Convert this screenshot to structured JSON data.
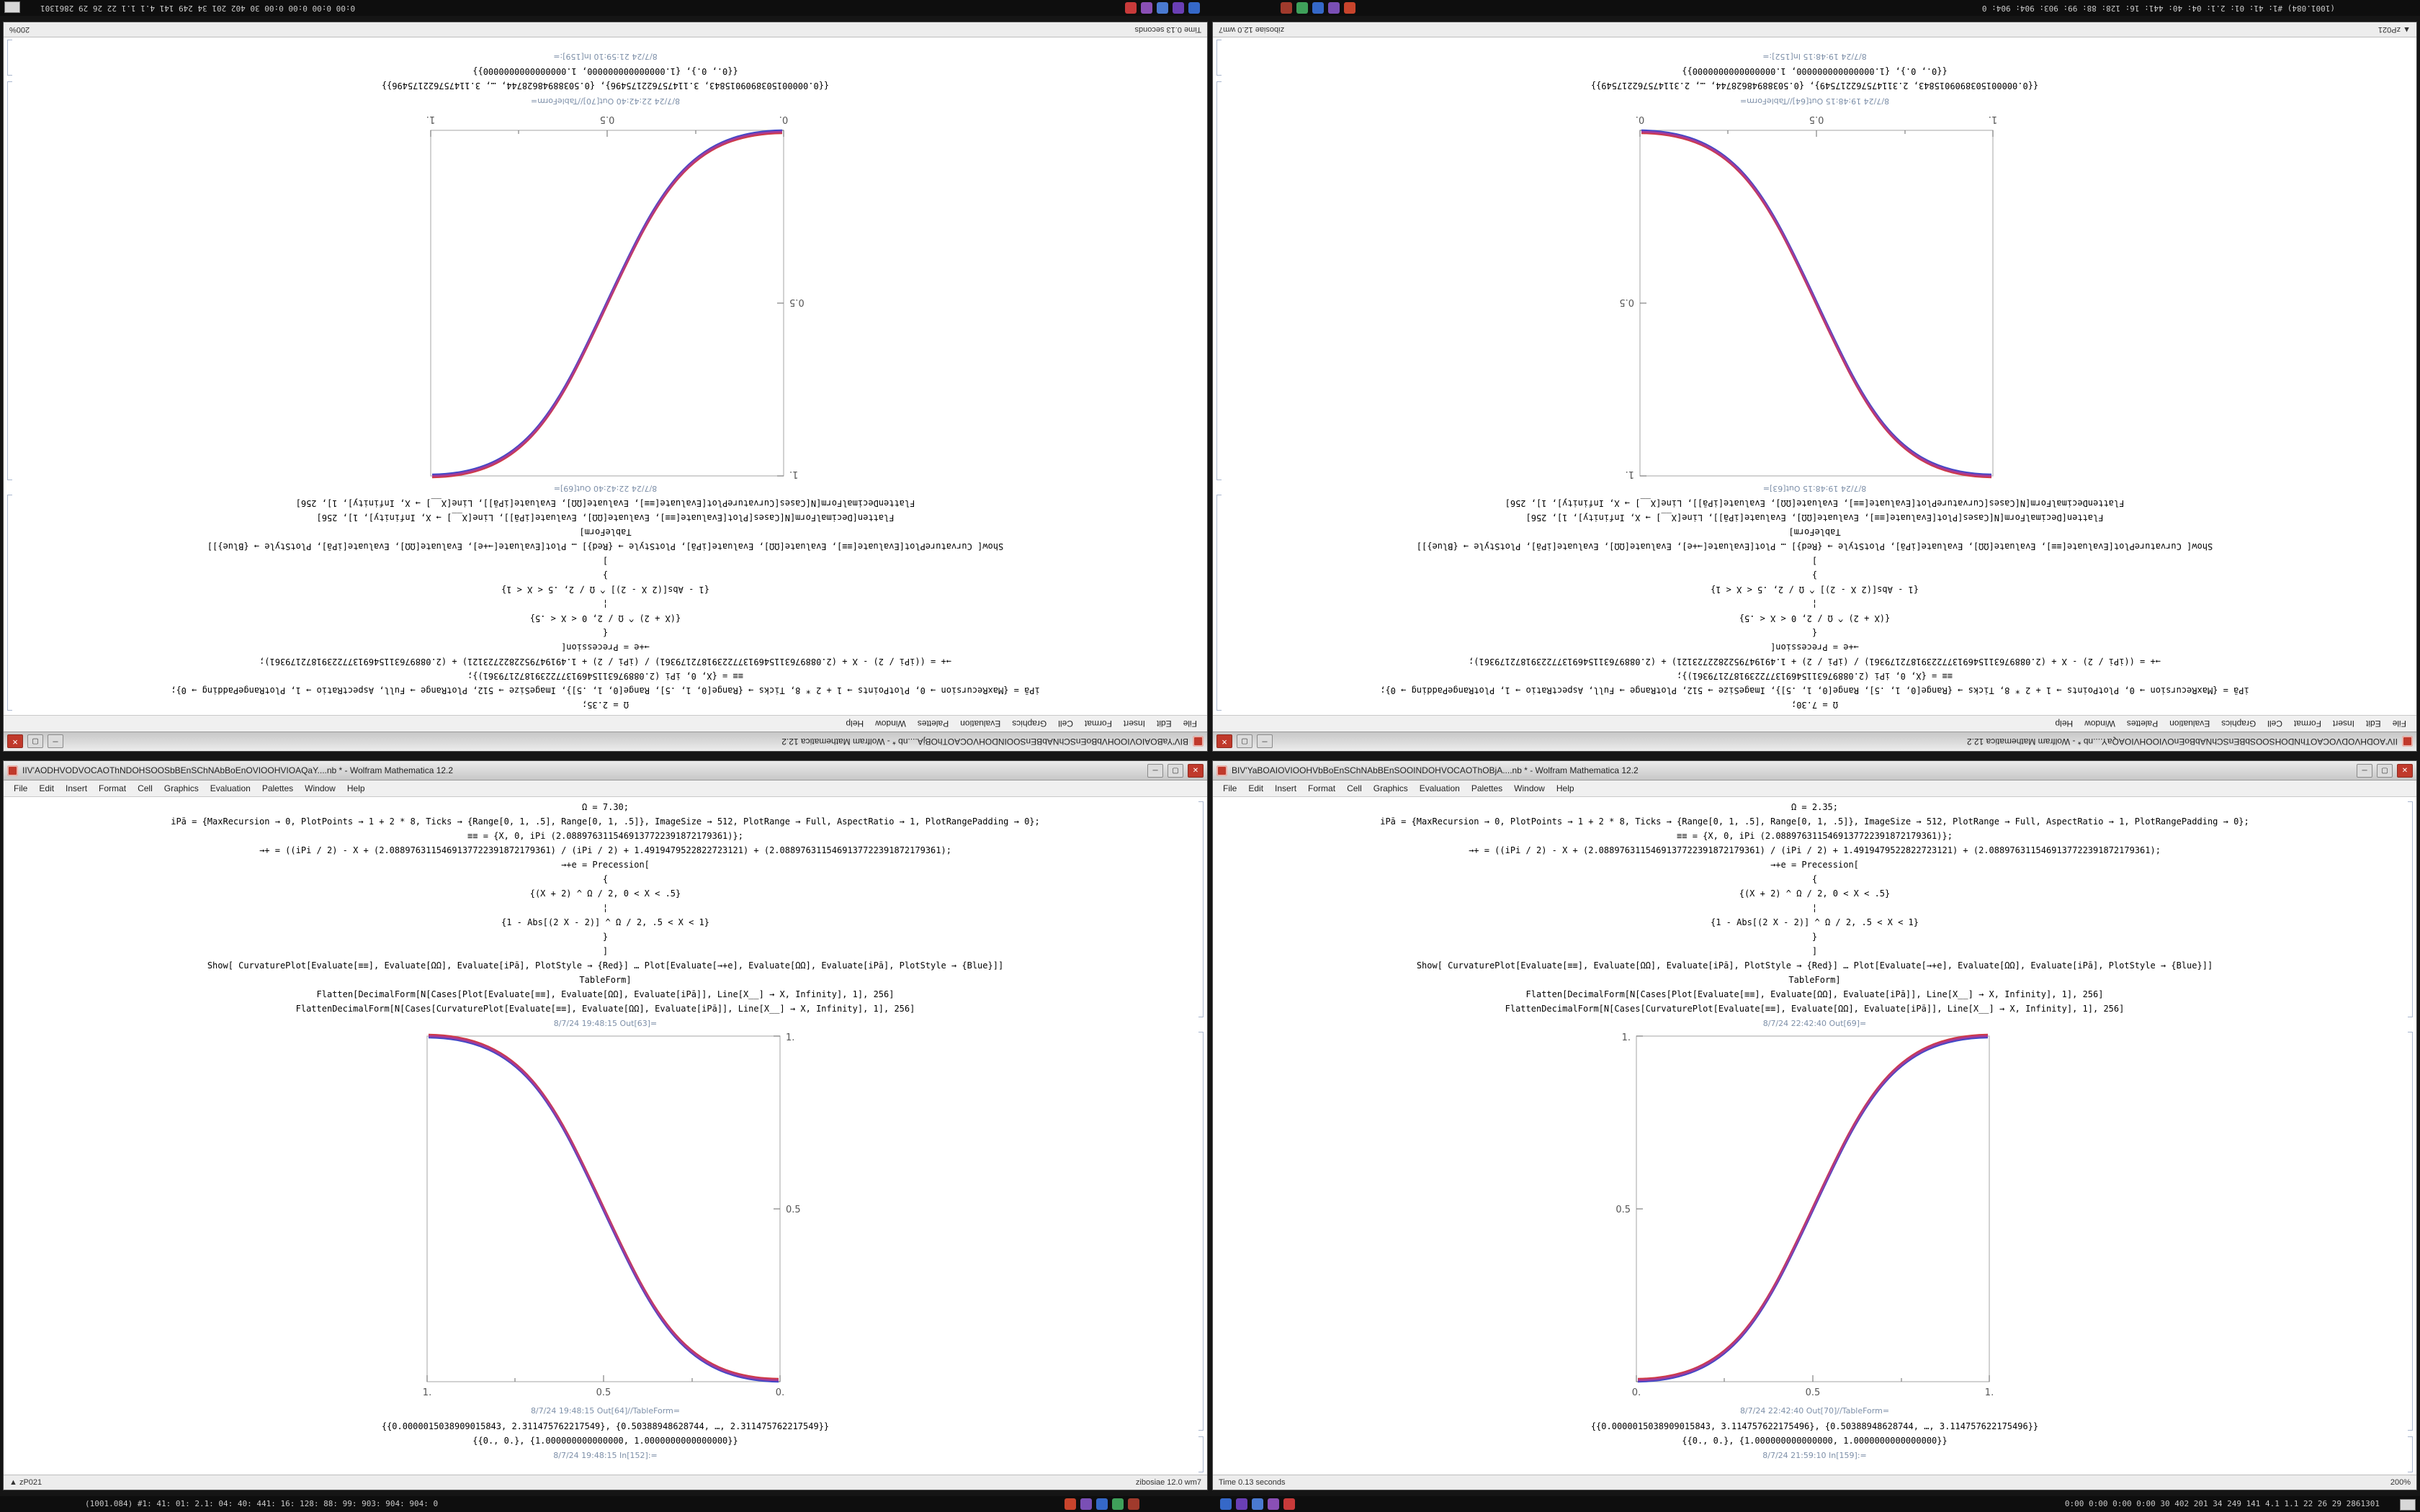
{
  "desktop": {
    "background": "#151515"
  },
  "window_buttons": {
    "minimize": "─",
    "maximize": "▢",
    "close": "✕"
  },
  "menu": {
    "items": [
      "File",
      "Edit",
      "Insert",
      "Format",
      "Cell",
      "Graphics",
      "Evaluation",
      "Palettes",
      "Window",
      "Help"
    ]
  },
  "taskbar": {
    "left_stats": "(1001.084)  #1: 41: 01: 2.1: 04: 40: 441: 16: 128: 88: 99: 903: 904: 904: 0",
    "right_stats": "0:00  0:00  0:00  0:00   30  402  201  34  249  141   4.1  1.1   22  26  29   2861301",
    "cluster1_colors": [
      "#c8442c",
      "#7a4fb5",
      "#3568c8",
      "#3fa05a",
      "#a03a2c"
    ],
    "cluster2_colors": [
      "#3568c8",
      "#6a3fb5",
      "#4a7ad0",
      "#8a4fb5",
      "#c83a3a"
    ]
  },
  "notebook_left": {
    "title": "IIV'AODHVODVOCAOThNDOHSOOSbBEnSChNAbBoEnOVIOOHVIOAQaY....nb * - Wolfram Mathematica 12.2",
    "inputs": [
      "Ω = 7.30;",
      "iPā = {MaxRecursion → 0, PlotPoints → 1 + 2 * 8, Ticks → {Range[0, 1, .5], Range[0, 1, .5]}, ImageSize → 512, PlotRange → Full, AspectRatio → 1, PlotRangePadding → 0};",
      "≡≡ = {X, 0, iPi (2.0889763115469137722391872179361)};",
      "→+ = ((iPi / 2) - X + (2.0889763115469137722391872179361) / (iPi / 2) + 1.4919479522822723121) + (2.0889763115469137722391872179361);",
      "→+e = Precession[",
      "{",
      "{(X + 2) ^ Ω / 2, 0 < X < .5}",
      "¦",
      "{1 - Abs[(2 X - 2)] ^ Ω / 2, .5 < X < 1}",
      "}",
      "]",
      "Show[ CurvaturePlot[Evaluate[≡≡], Evaluate[ΩΩ], Evaluate[iPā], PlotStyle → {Red}] … Plot[Evaluate[→+e], Evaluate[ΩΩ], Evaluate[iPā], PlotStyle → {Blue}]]",
      "TableForm]",
      "Flatten[DecimalForm[N[Cases[Plot[Evaluate[≡≡], Evaluate[ΩΩ], Evaluate[iPā]], Line[X__] → X, Infinity], 1], 256]",
      "FlattenDecimalForm[N[Cases[CurvaturePlot[Evaluate[≡≡], Evaluate[ΩΩ], Evaluate[iPā]], Line[X__] → X, Infinity], 1], 256]"
    ],
    "out_label_plot": "8/7/24 19:48:15 Out[63]=",
    "out_label_table": "8/7/24 19:48:15 Out[64]//TableForm=",
    "table_rows": [
      "{{0.0000015038909015843, 2.311475762217549}, {0.50388948628744, …, 2.311475762217549}}",
      "{{0., 0.}, {1.000000000000000, 1.0000000000000000}}"
    ],
    "next_in_label": "8/7/24 19:48:15 In[152]:=",
    "status_left": "▲ zP021",
    "status_right": "zibosiae 12.0 wm7",
    "plot": {
      "type": "line",
      "shape": "descending-sigmoid",
      "x_range": [
        0,
        1
      ],
      "y_range": [
        0,
        1
      ],
      "x_ticks": [
        "1.",
        "0.5",
        "0."
      ],
      "y_ticks": [
        "0.5",
        "1."
      ],
      "y_tick_side": "right",
      "series": [
        {
          "name": "CurvaturePlot",
          "color": "#d03a45"
        },
        {
          "name": "Plot",
          "color": "#4048c8"
        }
      ],
      "points": [
        [
          0,
          1
        ],
        [
          0.25,
          0.96
        ],
        [
          0.5,
          0.5
        ],
        [
          0.75,
          0.04
        ],
        [
          1,
          0
        ]
      ]
    }
  },
  "notebook_right": {
    "title": "BIV'YaBOAIOVIOOHVbBoEnSChNAbBEnSOOINDOHVOCAOThOBjA....nb * - Wolfram Mathematica 12.2",
    "inputs": [
      "Ω = 2.35;",
      "iPā = {MaxRecursion → 0, PlotPoints → 1 + 2 * 8, Ticks → {Range[0, 1, .5], Range[0, 1, .5]}, ImageSize → 512, PlotRange → Full, AspectRatio → 1, PlotRangePadding → 0};",
      "≡≡ = {X, 0, iPi (2.0889763115469137722391872179361)};",
      "→+ = ((iPi / 2) - X + (2.0889763115469137722391872179361) / (iPi / 2) + 1.4919479522822723121) + (2.0889763115469137722391872179361);",
      "→+e = Precession[",
      "{",
      "{(X + 2) ^ Ω / 2, 0 < X < .5}",
      "¦",
      "{1 - Abs[(2 X - 2)] ^ Ω / 2, .5 < X < 1}",
      "}",
      "]",
      "Show[ CurvaturePlot[Evaluate[≡≡], Evaluate[ΩΩ], Evaluate[iPā], PlotStyle → {Red}] … Plot[Evaluate[→+e], Evaluate[ΩΩ], Evaluate[iPā], PlotStyle → {Blue}]]",
      "TableForm]",
      "Flatten[DecimalForm[N[Cases[Plot[Evaluate[≡≡], Evaluate[ΩΩ], Evaluate[iPā]], Line[X__] → X, Infinity], 1], 256]",
      "FlattenDecimalForm[N[Cases[CurvaturePlot[Evaluate[≡≡], Evaluate[ΩΩ], Evaluate[iPā]], Line[X__] → X, Infinity], 1], 256]"
    ],
    "out_label_plot": "8/7/24 22:42:40 Out[69]=",
    "out_label_table": "8/7/24 22:42:40 Out[70]//TableForm=",
    "table_rows": [
      "{{0.0000015038909015843, 3.114757622175496}, {0.50388948628744, …, 3.114757622175496}}",
      "{{0., 0.}, {1.000000000000000, 1.0000000000000000}}"
    ],
    "next_in_label": "8/7/24 21:59:10 In[159]:=",
    "status_left": "Time 0.13 seconds",
    "status_right": "200%",
    "plot": {
      "type": "line",
      "shape": "ascending-sigmoid",
      "x_range": [
        0,
        1
      ],
      "y_range": [
        0,
        1
      ],
      "x_ticks": [
        "0.",
        "0.5",
        "1."
      ],
      "y_ticks": [
        "0.5",
        "1."
      ],
      "y_tick_side": "left",
      "series": [
        {
          "name": "CurvaturePlot",
          "color": "#d03a45"
        },
        {
          "name": "Plot",
          "color": "#4048c8"
        }
      ],
      "points": [
        [
          0,
          0
        ],
        [
          0.25,
          0.04
        ],
        [
          0.5,
          0.5
        ],
        [
          0.75,
          0.96
        ],
        [
          1,
          1
        ]
      ]
    }
  }
}
